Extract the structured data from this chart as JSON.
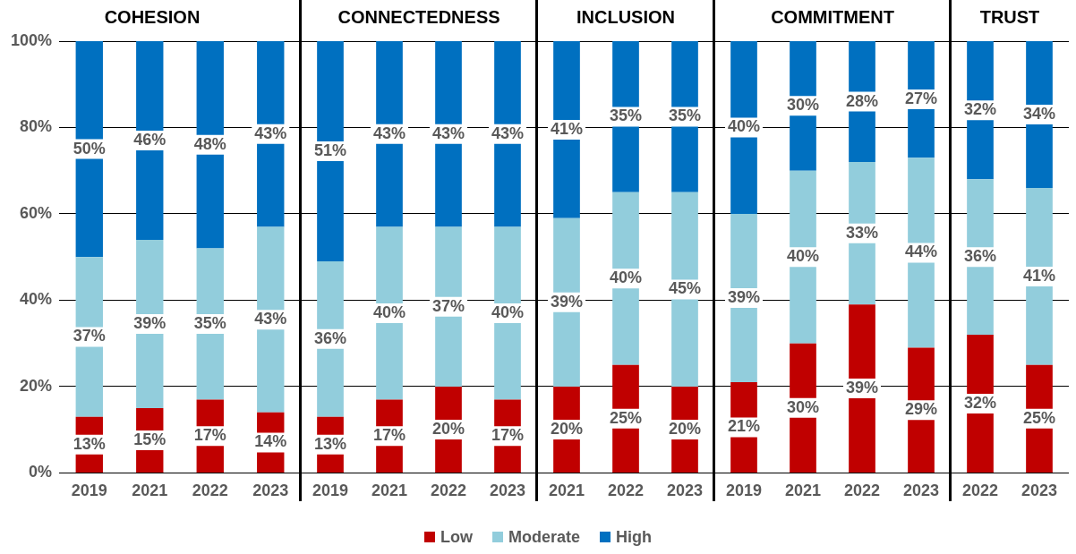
{
  "chart_data": [
    {
      "type": "bar",
      "title": "COHESION",
      "categories": [
        "2019",
        "2021",
        "2022",
        "2023"
      ],
      "stacked": true,
      "grid": "y",
      "legend": "bottom",
      "ylim": [
        0,
        100
      ],
      "yticks": [
        {
          "value": 0,
          "label": "0%"
        },
        {
          "value": 20,
          "label": "20%"
        },
        {
          "value": 40,
          "label": "40%"
        },
        {
          "value": 60,
          "label": "60%"
        },
        {
          "value": 80,
          "label": "80%"
        },
        {
          "value": 100,
          "label": "100%"
        }
      ],
      "series": [
        {
          "name": "Low",
          "color": "#c00000",
          "values": [
            13,
            15,
            17,
            14
          ],
          "value_labels": [
            "13%",
            "15%",
            "17%",
            "14%"
          ]
        },
        {
          "name": "Moderate",
          "color": "#92cddc",
          "values": [
            37,
            39,
            35,
            43
          ],
          "value_labels": [
            "37%",
            "39%",
            "35%",
            "43%"
          ]
        },
        {
          "name": "High",
          "color": "#0070c0",
          "values": [
            50,
            46,
            48,
            43
          ],
          "value_labels": [
            "50%",
            "46%",
            "48%",
            "43%"
          ]
        }
      ]
    },
    {
      "type": "bar",
      "title": "CONNECTEDNESS",
      "categories": [
        "2019",
        "2021",
        "2022",
        "2023"
      ],
      "stacked": true,
      "grid": "y",
      "tick_labels": "x",
      "ylim": [
        0,
        100
      ],
      "yticks": [
        {
          "value": 0,
          "label": null
        },
        {
          "value": 20,
          "label": null
        },
        {
          "value": 40,
          "label": null
        },
        {
          "value": 60,
          "label": null
        },
        {
          "value": 80,
          "label": null
        },
        {
          "value": 100,
          "label": null
        }
      ],
      "series": [
        {
          "color": "#c00000",
          "values": [
            13,
            17,
            20,
            17
          ],
          "value_labels": [
            "13%",
            "17%",
            "20%",
            "17%"
          ]
        },
        {
          "color": "#92cddc",
          "values": [
            36,
            40,
            37,
            40
          ],
          "value_labels": [
            "36%",
            "40%",
            "37%",
            "40%"
          ]
        },
        {
          "color": "#0070c0",
          "values": [
            51,
            43,
            43,
            43
          ],
          "value_labels": [
            "51%",
            "43%",
            "43%",
            "43%"
          ]
        }
      ]
    },
    {
      "type": "bar",
      "title": "INCLUSION",
      "categories": [
        "2021",
        "2022",
        "2023"
      ],
      "stacked": true,
      "grid": "y",
      "tick_labels": "x",
      "ylim": [
        0,
        100
      ],
      "yticks": [
        {
          "value": 0,
          "label": null
        },
        {
          "value": 20,
          "label": null
        },
        {
          "value": 40,
          "label": null
        },
        {
          "value": 60,
          "label": null
        },
        {
          "value": 80,
          "label": null
        },
        {
          "value": 100,
          "label": null
        }
      ],
      "series": [
        {
          "color": "#c00000",
          "values": [
            20,
            25,
            20
          ],
          "value_labels": [
            "20%",
            "25%",
            "20%"
          ]
        },
        {
          "color": "#92cddc",
          "values": [
            39,
            40,
            45
          ],
          "value_labels": [
            "39%",
            "40%",
            "45%"
          ]
        },
        {
          "color": "#0070c0",
          "values": [
            41,
            35,
            35
          ],
          "value_labels": [
            "41%",
            "35%",
            "35%"
          ]
        }
      ]
    },
    {
      "type": "bar",
      "title": "COMMITMENT",
      "categories": [
        "2019",
        "2021",
        "2022",
        "2023"
      ],
      "stacked": true,
      "grid": "y",
      "tick_labels": "x",
      "ylim": [
        0,
        100
      ],
      "yticks": [
        {
          "value": 0,
          "label": null
        },
        {
          "value": 20,
          "label": null
        },
        {
          "value": 40,
          "label": null
        },
        {
          "value": 60,
          "label": null
        },
        {
          "value": 80,
          "label": null
        },
        {
          "value": 100,
          "label": null
        }
      ],
      "series": [
        {
          "color": "#c00000",
          "values": [
            21,
            30,
            39,
            29
          ],
          "value_labels": [
            "21%",
            "30%",
            "39%",
            "29%"
          ]
        },
        {
          "color": "#92cddc",
          "values": [
            39,
            40,
            33,
            44
          ],
          "value_labels": [
            "39%",
            "40%",
            "33%",
            "44%"
          ]
        },
        {
          "color": "#0070c0",
          "values": [
            40,
            30,
            28,
            27
          ],
          "value_labels": [
            "40%",
            "30%",
            "28%",
            "27%"
          ]
        }
      ]
    },
    {
      "type": "bar",
      "title": "TRUST",
      "categories": [
        "2022",
        "2023"
      ],
      "stacked": true,
      "grid": "y",
      "tick_labels": "x",
      "ylim": [
        0,
        100
      ],
      "yticks": [
        {
          "value": 0,
          "label": null
        },
        {
          "value": 20,
          "label": null
        },
        {
          "value": 40,
          "label": null
        },
        {
          "value": 60,
          "label": null
        },
        {
          "value": 80,
          "label": null
        },
        {
          "value": 100,
          "label": null
        }
      ],
      "series": [
        {
          "color": "#c00000",
          "values": [
            32,
            25
          ],
          "value_labels": [
            "32%",
            "25%"
          ]
        },
        {
          "color": "#92cddc",
          "values": [
            36,
            41
          ],
          "value_labels": [
            "36%",
            "41%"
          ]
        },
        {
          "color": "#0070c0",
          "values": [
            32,
            34
          ],
          "value_labels": [
            "32%",
            "34%"
          ]
        }
      ]
    }
  ]
}
